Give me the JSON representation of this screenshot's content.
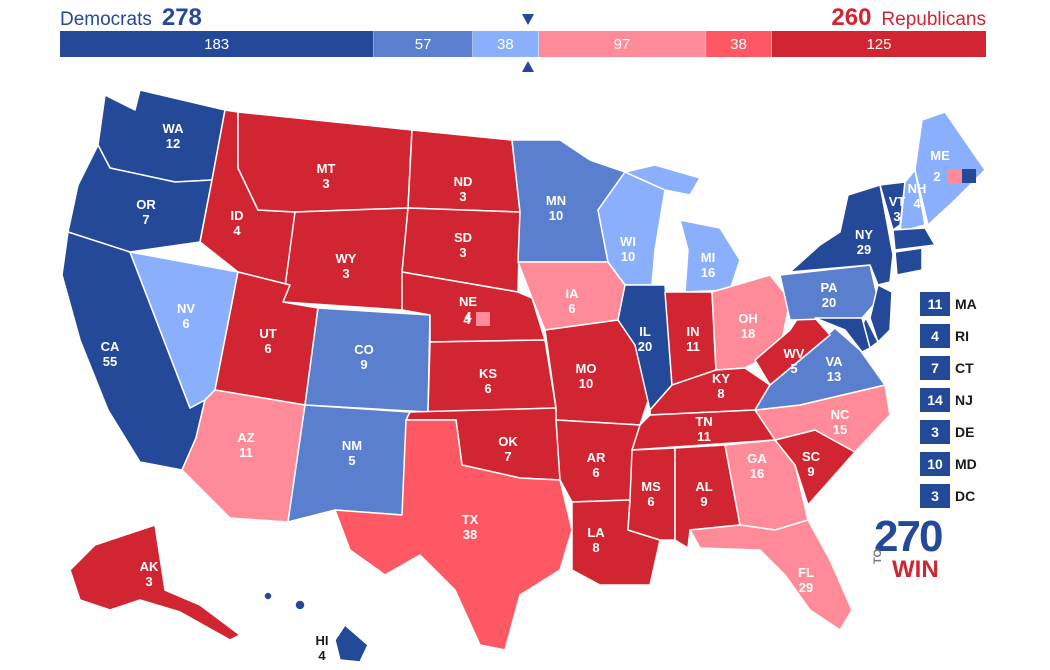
{
  "header": {
    "dem_label": "Democrats",
    "dem_total": "278",
    "rep_total": "260",
    "rep_label": "Republicans"
  },
  "bar": [
    {
      "value": "183",
      "color": "#244999",
      "flex": 183
    },
    {
      "value": "57",
      "color": "#5a7fce",
      "flex": 57
    },
    {
      "value": "38",
      "color": "#8aaffc",
      "flex": 38
    },
    {
      "value": "97",
      "color": "#ff8b98",
      "flex": 97
    },
    {
      "value": "38",
      "color": "#ff5865",
      "flex": 38
    },
    {
      "value": "125",
      "color": "#d22532",
      "flex": 125
    }
  ],
  "colors": {
    "safe_dem": "#244999",
    "likely_dem": "#5a7fce",
    "lean_dem": "#8aaffc",
    "lean_rep": "#ff8b98",
    "likely_rep": "#ff5865",
    "safe_rep": "#d22532"
  },
  "states": [
    {
      "abbr": "WA",
      "votes": "12",
      "rating": "safe_dem"
    },
    {
      "abbr": "OR",
      "votes": "7",
      "rating": "safe_dem"
    },
    {
      "abbr": "CA",
      "votes": "55",
      "rating": "safe_dem"
    },
    {
      "abbr": "NV",
      "votes": "6",
      "rating": "lean_dem"
    },
    {
      "abbr": "ID",
      "votes": "4",
      "rating": "safe_rep"
    },
    {
      "abbr": "MT",
      "votes": "3",
      "rating": "safe_rep"
    },
    {
      "abbr": "WY",
      "votes": "3",
      "rating": "safe_rep"
    },
    {
      "abbr": "UT",
      "votes": "6",
      "rating": "safe_rep"
    },
    {
      "abbr": "AZ",
      "votes": "11",
      "rating": "lean_rep"
    },
    {
      "abbr": "CO",
      "votes": "9",
      "rating": "likely_dem"
    },
    {
      "abbr": "NM",
      "votes": "5",
      "rating": "likely_dem"
    },
    {
      "abbr": "ND",
      "votes": "3",
      "rating": "safe_rep"
    },
    {
      "abbr": "SD",
      "votes": "3",
      "rating": "safe_rep"
    },
    {
      "abbr": "NE",
      "votes": "4",
      "rating": "safe_rep"
    },
    {
      "abbr": "KS",
      "votes": "6",
      "rating": "safe_rep"
    },
    {
      "abbr": "OK",
      "votes": "7",
      "rating": "safe_rep"
    },
    {
      "abbr": "TX",
      "votes": "38",
      "rating": "likely_rep"
    },
    {
      "abbr": "MN",
      "votes": "10",
      "rating": "likely_dem"
    },
    {
      "abbr": "IA",
      "votes": "6",
      "rating": "lean_rep"
    },
    {
      "abbr": "MO",
      "votes": "10",
      "rating": "safe_rep"
    },
    {
      "abbr": "AR",
      "votes": "6",
      "rating": "safe_rep"
    },
    {
      "abbr": "LA",
      "votes": "8",
      "rating": "safe_rep"
    },
    {
      "abbr": "WI",
      "votes": "10",
      "rating": "lean_dem"
    },
    {
      "abbr": "IL",
      "votes": "20",
      "rating": "safe_dem"
    },
    {
      "abbr": "MI",
      "votes": "16",
      "rating": "lean_dem"
    },
    {
      "abbr": "IN",
      "votes": "11",
      "rating": "safe_rep"
    },
    {
      "abbr": "OH",
      "votes": "18",
      "rating": "lean_rep"
    },
    {
      "abbr": "KY",
      "votes": "8",
      "rating": "safe_rep"
    },
    {
      "abbr": "TN",
      "votes": "11",
      "rating": "safe_rep"
    },
    {
      "abbr": "MS",
      "votes": "6",
      "rating": "safe_rep"
    },
    {
      "abbr": "AL",
      "votes": "9",
      "rating": "safe_rep"
    },
    {
      "abbr": "GA",
      "votes": "16",
      "rating": "lean_rep"
    },
    {
      "abbr": "FL",
      "votes": "29",
      "rating": "lean_rep"
    },
    {
      "abbr": "SC",
      "votes": "9",
      "rating": "safe_rep"
    },
    {
      "abbr": "NC",
      "votes": "15",
      "rating": "lean_rep"
    },
    {
      "abbr": "VA",
      "votes": "13",
      "rating": "likely_dem"
    },
    {
      "abbr": "WV",
      "votes": "5",
      "rating": "safe_rep"
    },
    {
      "abbr": "PA",
      "votes": "20",
      "rating": "likely_dem"
    },
    {
      "abbr": "NY",
      "votes": "29",
      "rating": "safe_dem"
    },
    {
      "abbr": "VT",
      "votes": "3",
      "rating": "safe_dem"
    },
    {
      "abbr": "NH",
      "votes": "4",
      "rating": "lean_dem"
    },
    {
      "abbr": "ME",
      "votes": "",
      "rating": "lean_dem"
    },
    {
      "abbr": "AK",
      "votes": "3",
      "rating": "safe_rep"
    },
    {
      "abbr": "HI",
      "votes": "4",
      "rating": "safe_dem"
    }
  ],
  "district_boxes": {
    "me_state": "2",
    "me_cd2": "1",
    "me_cd1": "1",
    "ne_state": "4",
    "ne_cd2": "1"
  },
  "small_states": [
    {
      "votes": "11",
      "abbr": "MA"
    },
    {
      "votes": "4",
      "abbr": "RI"
    },
    {
      "votes": "7",
      "abbr": "CT"
    },
    {
      "votes": "14",
      "abbr": "NJ"
    },
    {
      "votes": "3",
      "abbr": "DE"
    },
    {
      "votes": "10",
      "abbr": "MD"
    },
    {
      "votes": "3",
      "abbr": "DC"
    }
  ],
  "logo": {
    "num": "270",
    "to": "TO",
    "win": "WIN"
  }
}
